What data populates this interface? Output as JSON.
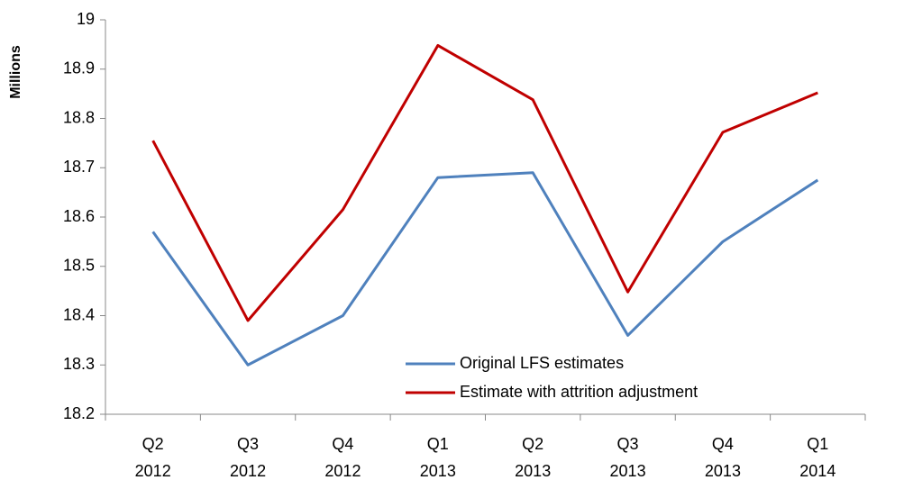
{
  "chart_data": {
    "type": "line",
    "y_label": "Millions",
    "categories": [
      [
        "Q2",
        "2012"
      ],
      [
        "Q3",
        "2012"
      ],
      [
        "Q4",
        "2012"
      ],
      [
        "Q1",
        "2013"
      ],
      [
        "Q2",
        "2013"
      ],
      [
        "Q3",
        "2013"
      ],
      [
        "Q4",
        "2013"
      ],
      [
        "Q1",
        "2014"
      ]
    ],
    "series": [
      {
        "name": "Original LFS estimates",
        "color": "#4f81bd",
        "values": [
          18.57,
          18.3,
          18.4,
          18.68,
          18.69,
          18.36,
          18.55,
          18.675
        ]
      },
      {
        "name": "Estimate with attrition adjustment",
        "color": "#c00000",
        "values": [
          18.755,
          18.39,
          18.615,
          18.948,
          18.838,
          18.448,
          18.772,
          18.852
        ]
      }
    ],
    "ylim": [
      18.2,
      19
    ],
    "yticks": [
      18.2,
      18.3,
      18.4,
      18.5,
      18.6,
      18.7,
      18.8,
      18.9,
      19
    ],
    "grid": false,
    "legend": "bottom-center"
  }
}
